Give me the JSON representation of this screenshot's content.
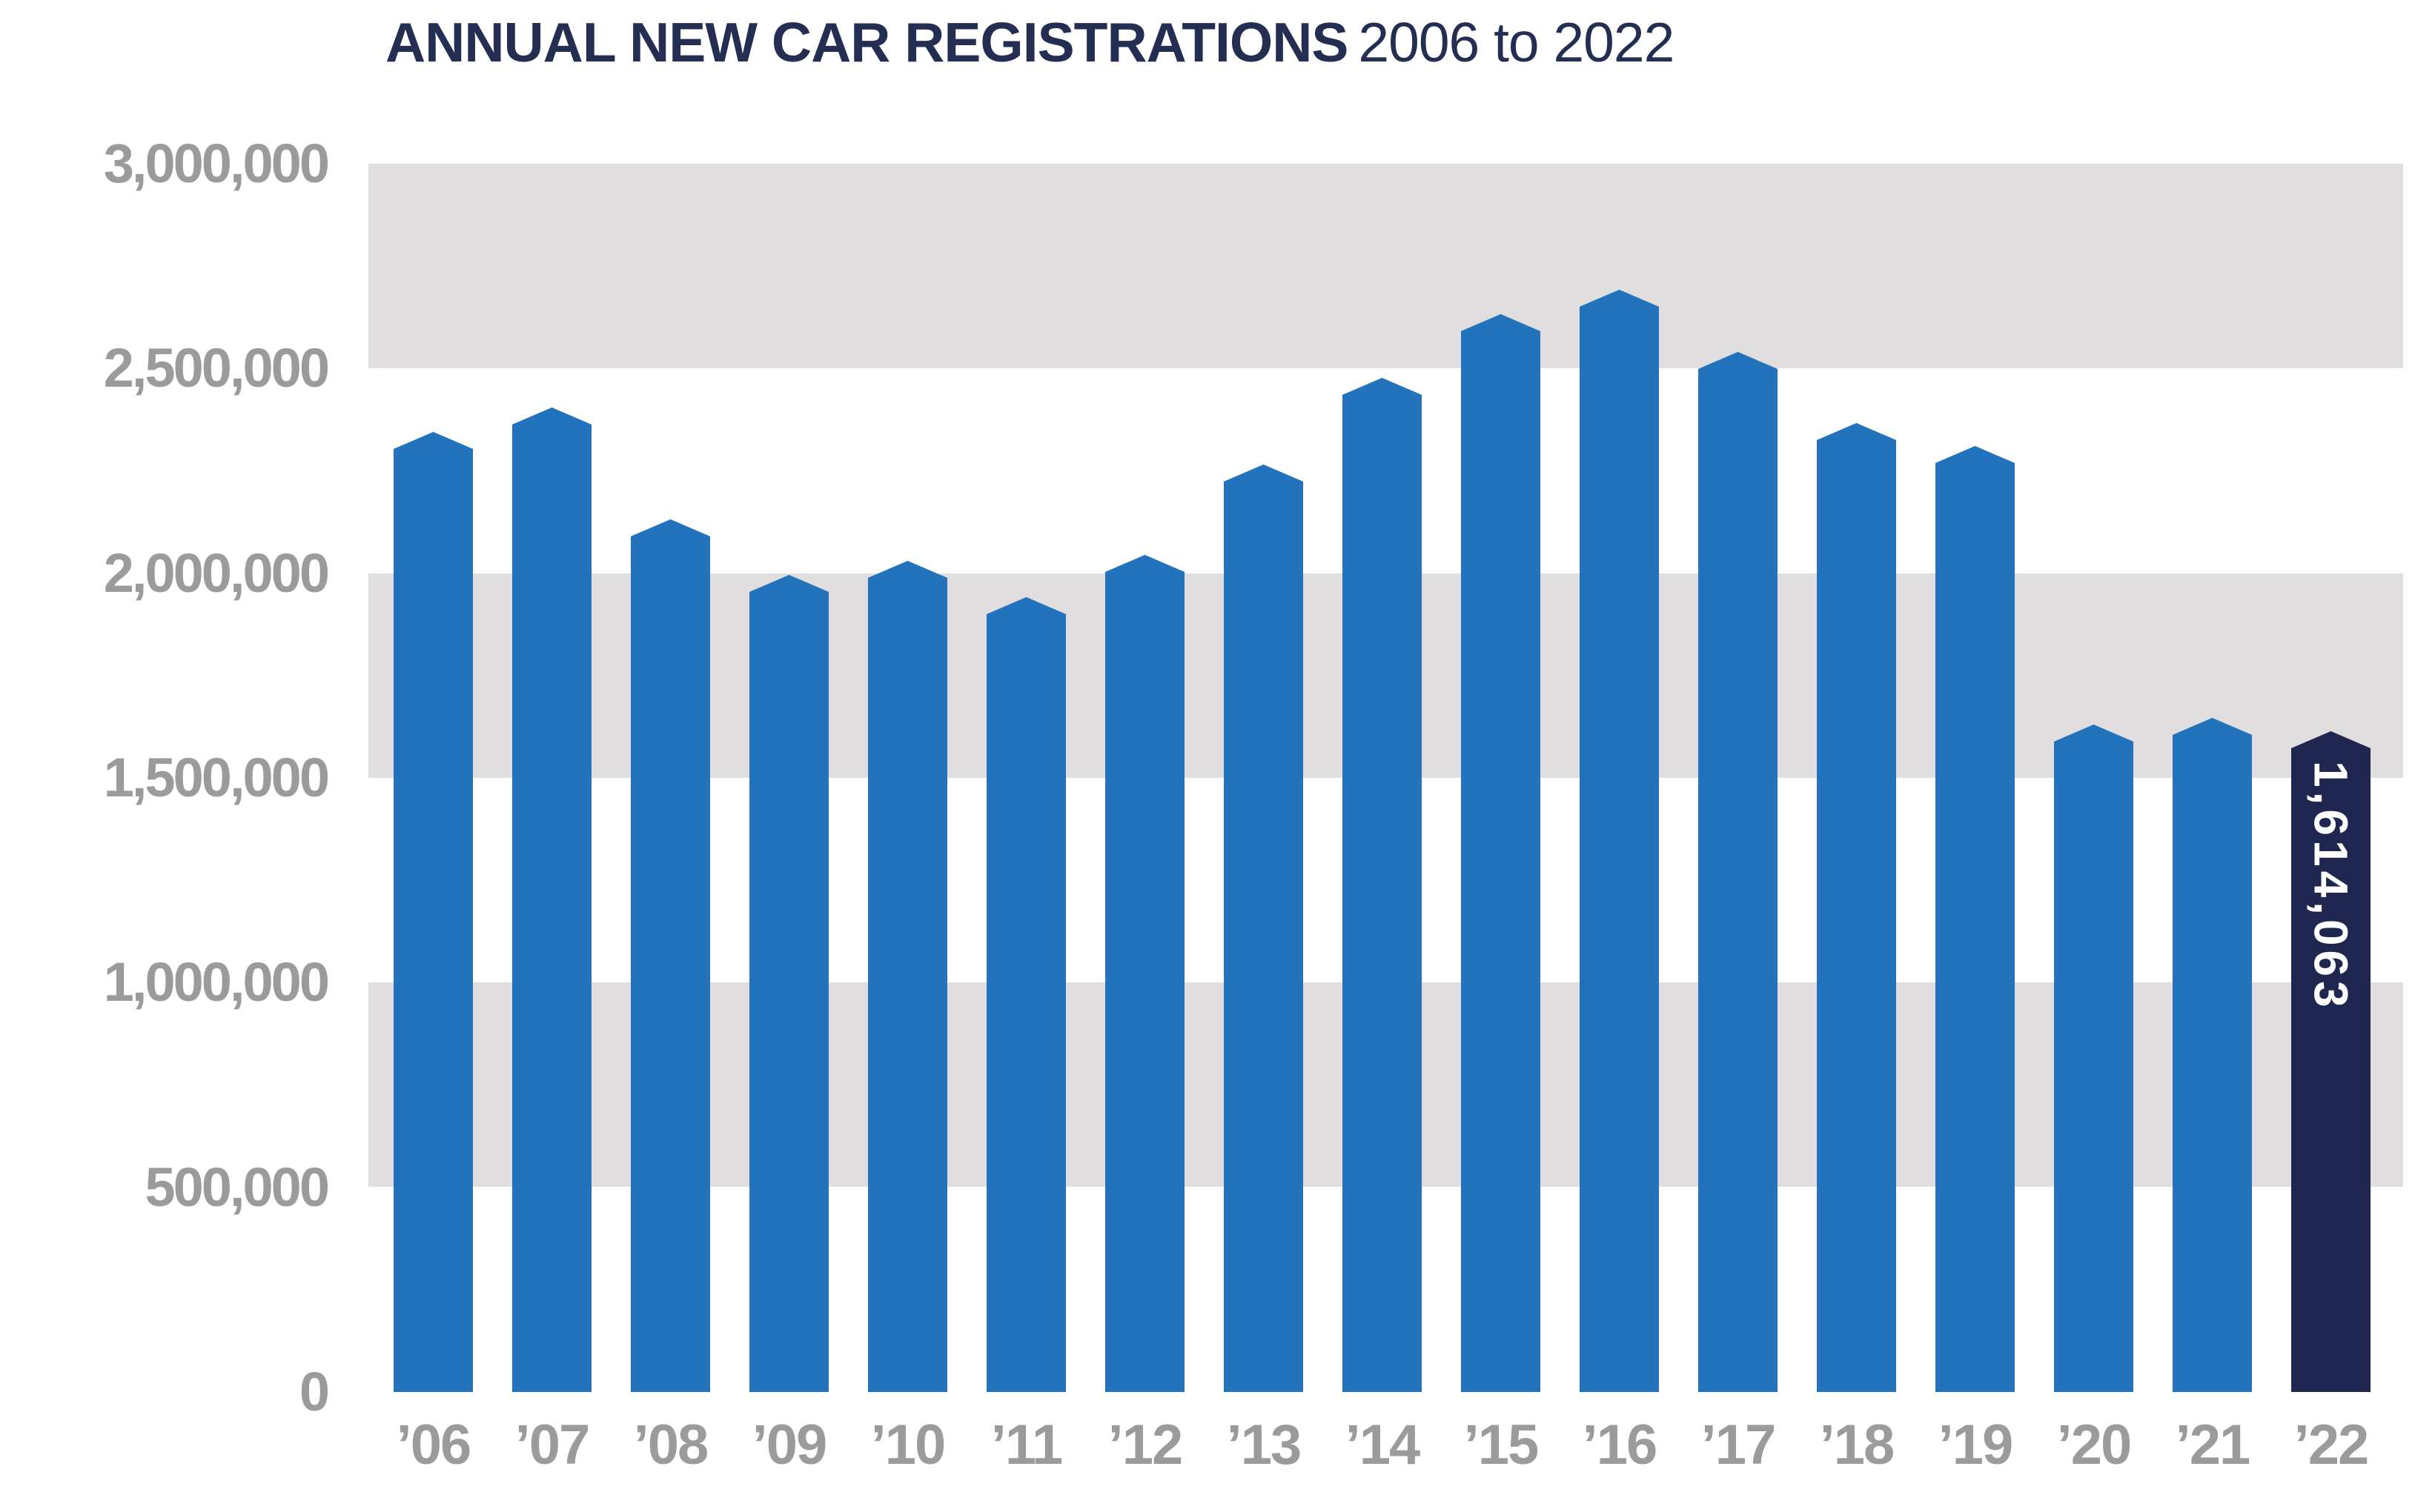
{
  "title": {
    "main": "ANNUAL NEW CAR REGISTRATIONS",
    "range": "2006 to 2022"
  },
  "y_axis": {
    "tick_labels": [
      "3,000,000",
      "2,500,000",
      "2,000,000",
      "1,500,000",
      "1,000,000",
      "500,000",
      "0"
    ]
  },
  "x_axis": {
    "tick_labels": [
      "’06",
      "’07",
      "’08",
      "’09",
      "’10",
      "’11",
      "’12",
      "’13",
      "’14",
      "’15",
      "’16",
      "’17",
      "’18",
      "’19",
      "’20",
      "’21",
      "’22"
    ]
  },
  "highlight": {
    "category": "’22",
    "value_label": "1,614,063"
  },
  "colors": {
    "bar_blue": "#2273BC",
    "bar_highlight_navy": "#1F2751",
    "band_gray": "#E0DEDE",
    "band_white": "#FFFFFF",
    "axis_label_gray": "#9B9B9B",
    "title_navy": "#232E52",
    "value_label_white": "#FFFFFF"
  },
  "chart_data": {
    "type": "bar",
    "title": "ANNUAL NEW CAR REGISTRATIONS 2006 to 2022",
    "categories": [
      "’06",
      "’07",
      "’08",
      "’09",
      "’10",
      "’11",
      "’12",
      "’13",
      "’14",
      "’15",
      "’16",
      "’17",
      "’18",
      "’19",
      "’20",
      "’21",
      "’22"
    ],
    "years": [
      2006,
      2007,
      2008,
      2009,
      2010,
      2011,
      2012,
      2013,
      2014,
      2015,
      2016,
      2017,
      2018,
      2019,
      2020,
      2021,
      2022
    ],
    "values": [
      2344864,
      2404007,
      2131795,
      1994999,
      2030846,
      1941253,
      2044609,
      2264737,
      2476435,
      2633503,
      2692786,
      2540617,
      2367147,
      2311140,
      1631064,
      1647181,
      1614063
    ],
    "xlabel": "",
    "ylabel": "",
    "ylim": [
      0,
      3000000
    ],
    "ytick_interval": 500000,
    "ytick_labels": [
      "3,000,000",
      "2,500,000",
      "2,000,000",
      "1,500,000",
      "1,000,000",
      "500,000",
      "0"
    ],
    "legend": "none",
    "grid": "alternating horizontal gray/white bands every 500,000",
    "bar_shape": "pentagon (pointed peak top)",
    "highlight_index": 16,
    "annotations": [
      {
        "target": "’22",
        "text": "1,614,063",
        "placement": "vertical white text inside dark navy bar"
      }
    ]
  }
}
